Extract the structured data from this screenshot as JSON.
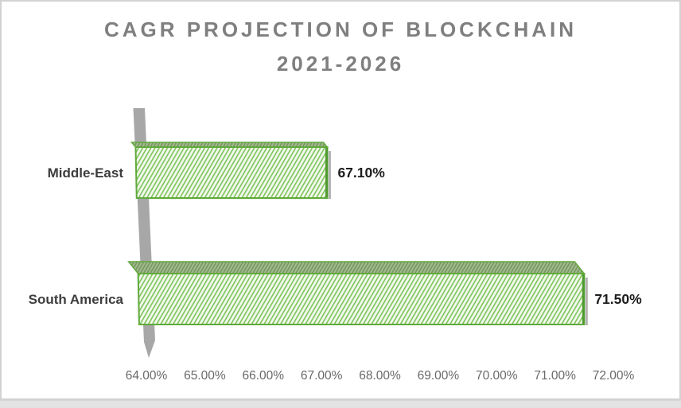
{
  "title": {
    "line1": "CAGR PROJECTION OF BLOCKCHAIN",
    "line2": "2021-2026"
  },
  "chart_data": {
    "type": "bar",
    "orientation": "horizontal",
    "style_3d": true,
    "hatch": "diagonal",
    "title": "CAGR PROJECTION OF BLOCKCHAIN 2021-2026",
    "categories": [
      "Middle-East",
      "South America"
    ],
    "values": [
      67.1,
      71.5
    ],
    "data_labels": [
      "67.10%",
      "71.50%"
    ],
    "xlim": [
      64,
      72
    ],
    "x_ticks": [
      64,
      65,
      66,
      67,
      68,
      69,
      70,
      71,
      72
    ],
    "x_tick_labels": [
      "64.00%",
      "65.00%",
      "66.00%",
      "67.00%",
      "68.00%",
      "69.00%",
      "70.00%",
      "71.00%",
      "72.00%"
    ],
    "xlabel": "",
    "ylabel": "",
    "grid": false,
    "legend": false,
    "colors": {
      "bar_border": "#61a93b",
      "bar_hatch_line": "#7cc45a",
      "bar_fill": "#f2f8ed",
      "bar_top_fill": "#a2b78f",
      "bar_top_line": "#6d9355",
      "bar_edge_dark": "#4f9a30",
      "bar_shadow": "#b3b3b3",
      "wall": "#a7a7a7",
      "title_text": "#7f7f7f",
      "category_text": "#3d3d3d",
      "value_text": "#1d1d1d",
      "tick_text": "#696969",
      "frame_border": "#d2d2d2",
      "bottom_band": "#e3e3e3"
    }
  }
}
